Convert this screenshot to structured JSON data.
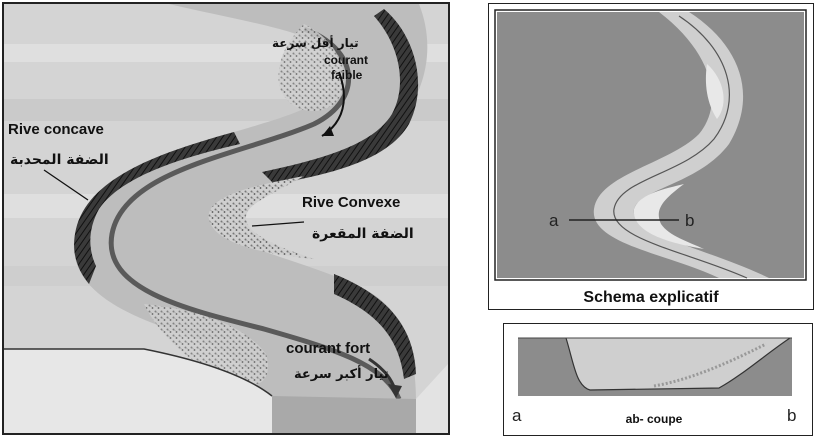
{
  "left_diagram": {
    "label_weak_current_ar": "تيار أقل سرعة",
    "label_weak_current_fr_1": "courant",
    "label_weak_current_fr_2": "faible",
    "label_concave_bank_fr": "Rive concave",
    "label_concave_bank_ar": "الضفة المحدبة",
    "label_convex_bank_fr": "Rive Convexe",
    "label_convex_bank_ar": "الضفة المقعرة",
    "label_strong_current_fr": "courant fort",
    "label_strong_current_ar": "تيار أكبر سرعة"
  },
  "schema": {
    "point_a": "a",
    "point_b": "b",
    "caption": "Schema explicatif"
  },
  "coupe": {
    "point_a": "a",
    "caption": "ab- coupe",
    "point_b": "b"
  },
  "colors": {
    "water": "#bdbdbd",
    "land": "#8c8c8c",
    "bank_dark": "#2a2a2a",
    "sediment": "#9a9a9a"
  }
}
